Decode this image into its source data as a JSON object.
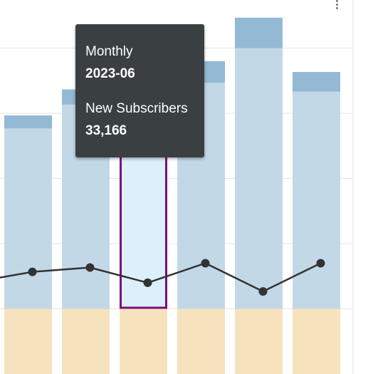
{
  "tooltip": {
    "period_label": "Monthly",
    "period_value": "2023-06",
    "metric_label": "New Subscribers",
    "metric_value": "33,166"
  },
  "menu_icon": "more-vert-icon",
  "colors": {
    "bar_main": "#c3d8e7",
    "bar_top": "#93b9d4",
    "bar_base": "#f6e3bd",
    "bar_highlight": "#dcf0fc",
    "highlight_border": "#7b0e7e",
    "line": "#333333",
    "grid": "#e6e6e6",
    "tooltip_bg": "#3a3f41"
  },
  "chart_data": {
    "type": "bar",
    "y_axis": {
      "min": 0,
      "max": 15
    },
    "highlight_index": 2,
    "bars": [
      {
        "main": 8.3,
        "top": 0.6,
        "base": 3.0
      },
      {
        "main": 9.4,
        "top": 0.7,
        "base": 3.0
      },
      {
        "main": 9.8,
        "top": 0.0,
        "base": 3.0
      },
      {
        "main": 10.4,
        "top": 1.0,
        "base": 3.0
      },
      {
        "main": 12.0,
        "top": 1.4,
        "base": 3.0
      },
      {
        "main": 10.0,
        "top": 0.9,
        "base": 3.0
      }
    ],
    "line_series": {
      "points": [
        {
          "x": 0,
          "y": 4.7
        },
        {
          "x": 1,
          "y": 4.9
        },
        {
          "x": 2,
          "y": 4.2
        },
        {
          "x": 3,
          "y": 5.1
        },
        {
          "x": 4,
          "y": 3.8
        },
        {
          "x": 5,
          "y": 5.1
        }
      ]
    },
    "grid": true
  }
}
